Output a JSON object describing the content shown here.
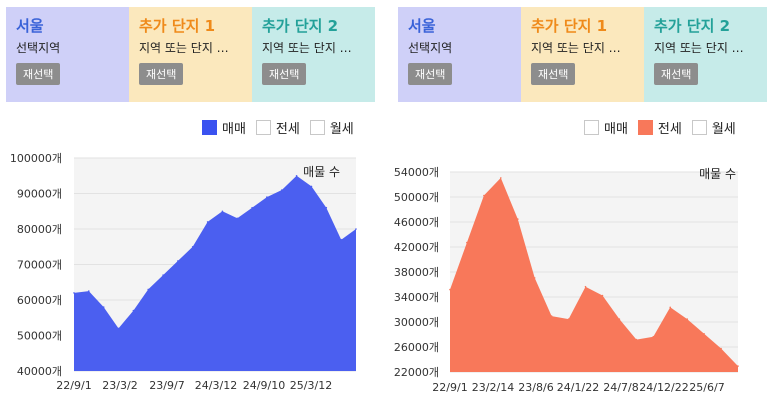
{
  "panels": [
    {
      "header": [
        {
          "title": "서울",
          "title_color": "#3a63d8",
          "subtitle": "선택지역",
          "button": "재선택"
        },
        {
          "title": "추가 단지 1",
          "title_color": "#ef8a1a",
          "subtitle": "지역 또는 단지 …",
          "button": "재선택"
        },
        {
          "title": "추가 단지 2",
          "title_color": "#23a199",
          "subtitle": "지역 또는 단지 …",
          "button": "재선택"
        }
      ],
      "legend": [
        {
          "label": "매매",
          "checked": true,
          "color": "#3a52f0"
        },
        {
          "label": "전세",
          "checked": false,
          "color": "#ffffff"
        },
        {
          "label": "월세",
          "checked": false,
          "color": "#ffffff"
        }
      ]
    },
    {
      "header": [
        {
          "title": "서울",
          "title_color": "#3a63d8",
          "subtitle": "선택지역",
          "button": "재선택"
        },
        {
          "title": "추가 단지 1",
          "title_color": "#ef8a1a",
          "subtitle": "지역 또는 단지 …",
          "button": "재선택"
        },
        {
          "title": "추가 단지 2",
          "title_color": "#23a199",
          "subtitle": "지역 또는 단지 …",
          "button": "재선택"
        }
      ],
      "legend": [
        {
          "label": "매매",
          "checked": false,
          "color": "#ffffff"
        },
        {
          "label": "전세",
          "checked": true,
          "color": "#f8785a"
        },
        {
          "label": "월세",
          "checked": false,
          "color": "#ffffff"
        }
      ]
    }
  ],
  "chart_data": [
    {
      "type": "area",
      "title": "매물 수",
      "series": [
        {
          "name": "매매",
          "color": "#4b5ff0"
        }
      ],
      "x": [
        "22/9/1",
        "22/11/1",
        "23/1/1",
        "23/3/2",
        "23/5/1",
        "23/7/1",
        "23/9/7",
        "23/11/1",
        "24/1/1",
        "24/3/12",
        "24/5/1",
        "24/7/1",
        "24/9/10",
        "24/11/1",
        "25/1/1",
        "25/3/12",
        "25/4/15",
        "25/5/15",
        "25/7/1",
        "25/8/15"
      ],
      "values": [
        62000,
        62500,
        58000,
        52000,
        57000,
        63000,
        67000,
        71000,
        75000,
        82000,
        85000,
        83000,
        86000,
        89000,
        91000,
        95000,
        92000,
        86000,
        77000,
        80000
      ],
      "x_tick_labels": [
        "22/9/1",
        "23/3/2",
        "23/9/7",
        "24/3/12",
        "24/9/10",
        "25/3/12"
      ],
      "y_tick_labels": [
        "100000개",
        "90000개",
        "80000개",
        "70000개",
        "60000개",
        "50000개",
        "40000개"
      ],
      "ylim": [
        40000,
        100000
      ]
    },
    {
      "type": "area",
      "title": "매물 수",
      "series": [
        {
          "name": "전세",
          "color": "#f8785a"
        }
      ],
      "x": [
        "22/9/1",
        "22/11/1",
        "23/1/1",
        "23/2/14",
        "23/4/1",
        "23/6/1",
        "23/8/6",
        "23/10/1",
        "24/1/22",
        "24/3/1",
        "24/5/1",
        "24/7/8",
        "24/9/1",
        "24/12/22",
        "25/2/1",
        "25/4/1",
        "25/6/7",
        "25/8/1"
      ],
      "values": [
        36000,
        44000,
        52000,
        55000,
        48000,
        38000,
        31500,
        31000,
        36500,
        35000,
        31000,
        27500,
        28000,
        33000,
        31000,
        28500,
        26000,
        23000
      ],
      "x_tick_labels": [
        "22/9/1",
        "23/2/14",
        "23/8/6",
        "24/1/22",
        "24/7/8",
        "24/12/22",
        "25/6/7"
      ],
      "y_tick_labels": [
        "54000개",
        "50000개",
        "46000개",
        "42000개",
        "38000개",
        "34000개",
        "30000개",
        "26000개",
        "22000개"
      ],
      "ylim": [
        22000,
        56000
      ]
    }
  ]
}
